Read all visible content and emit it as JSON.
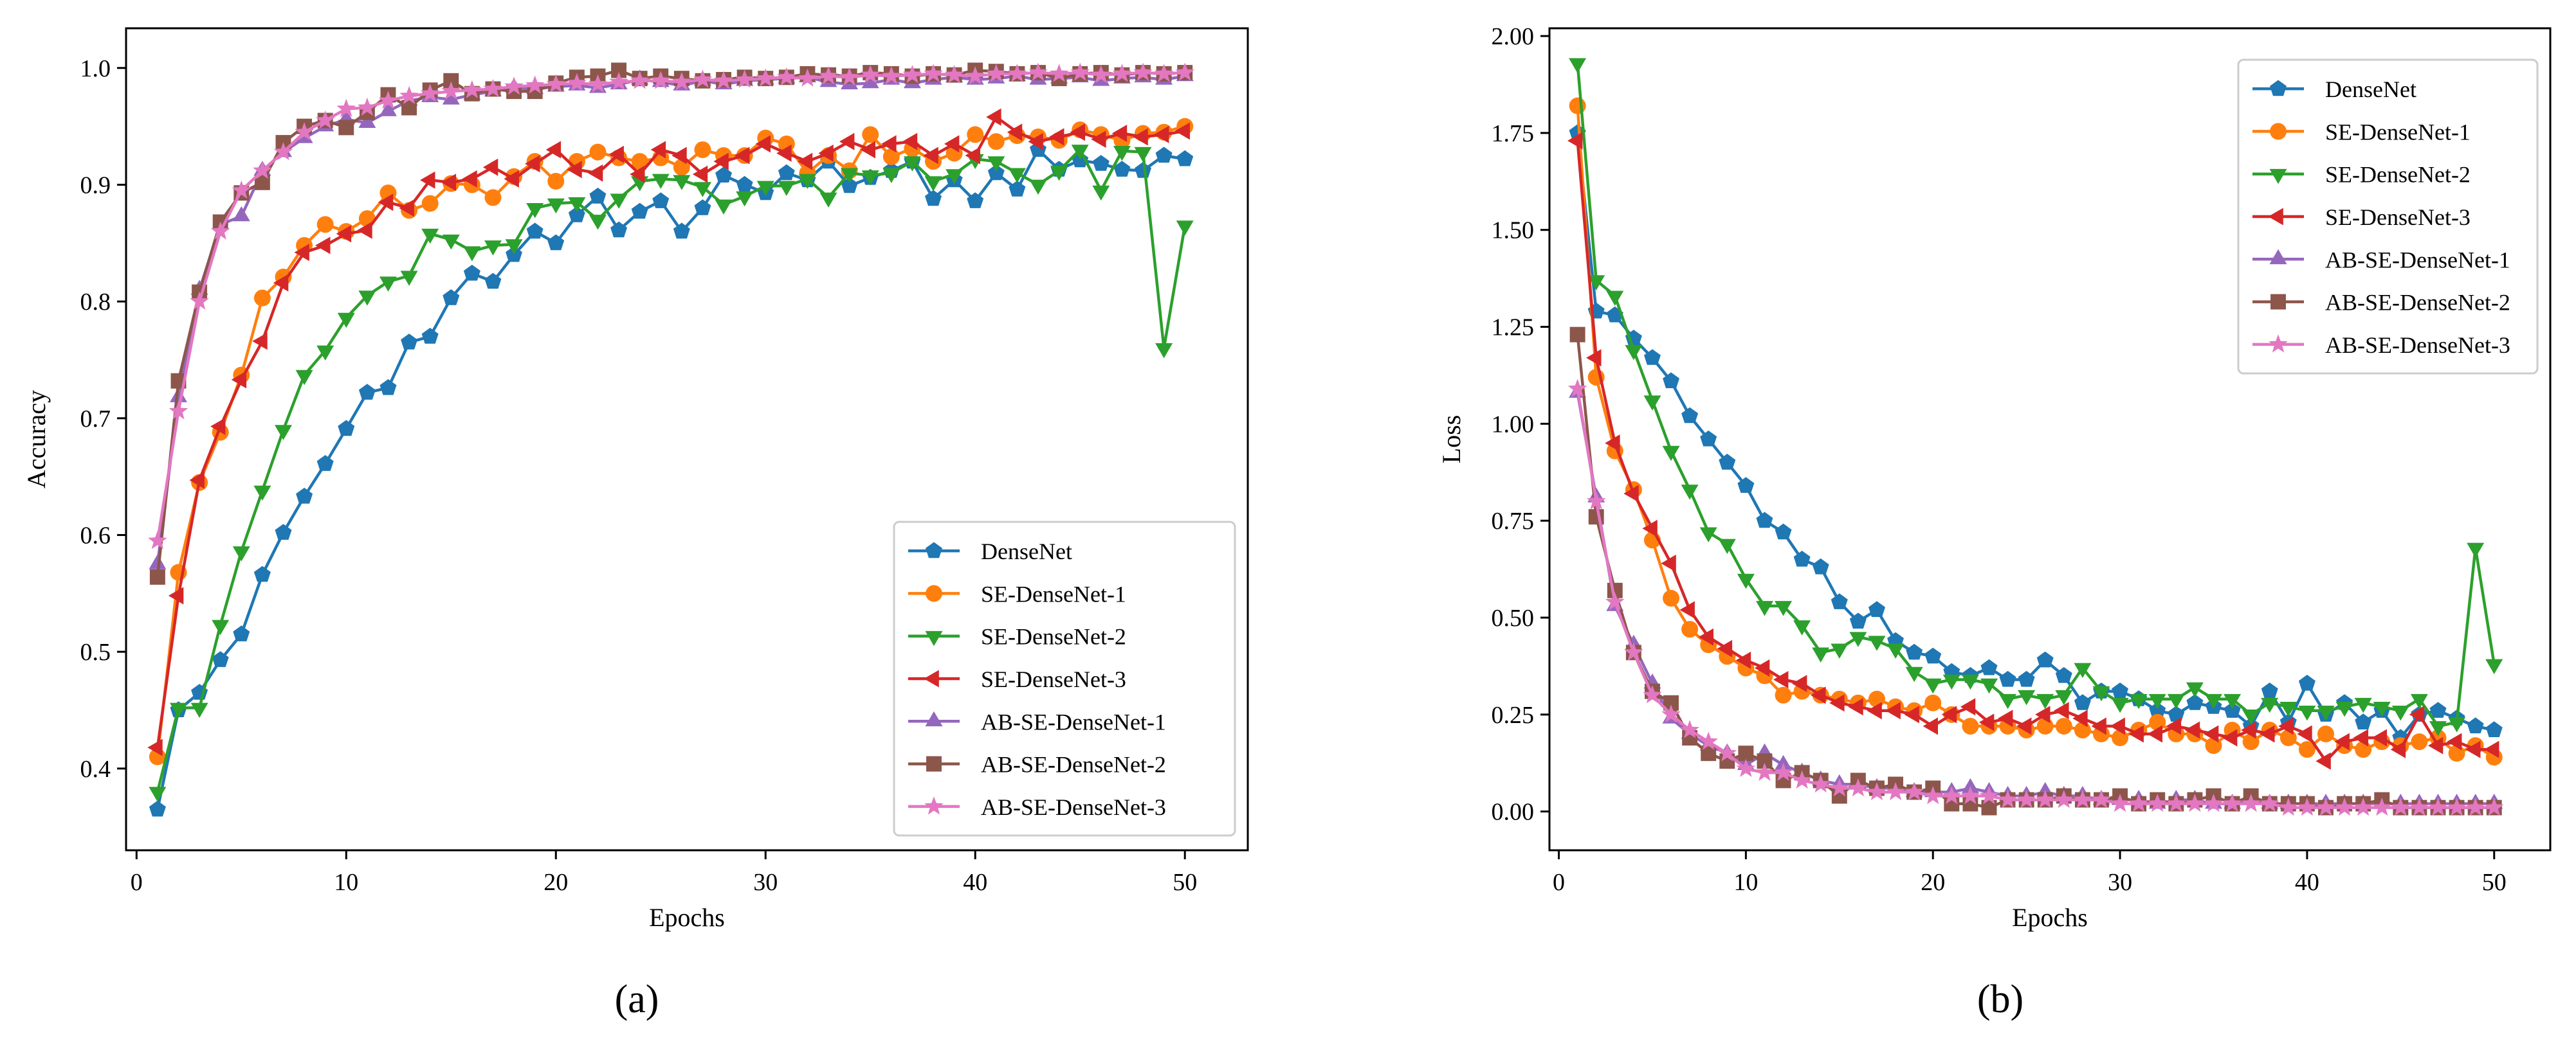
{
  "chart_data": [
    {
      "type": "line",
      "panel_label": "(a)",
      "xlabel": "Epochs",
      "ylabel": "Accuracy",
      "xlim": [
        -0.5,
        53
      ],
      "ylim": [
        0.33,
        1.034
      ],
      "xticks": [
        0,
        10,
        20,
        30,
        40,
        50
      ],
      "yticks": [
        0.4,
        0.5,
        0.6,
        0.7,
        0.8,
        0.9,
        1.0
      ],
      "tick_labels": [
        "0.4",
        "0.5",
        "0.6",
        "0.7",
        "0.8",
        "0.9",
        "1.0"
      ],
      "legend_position": "lower-right",
      "x": [
        1,
        2,
        3,
        4,
        5,
        6,
        7,
        8,
        9,
        10,
        11,
        12,
        13,
        14,
        15,
        16,
        17,
        18,
        19,
        20,
        21,
        22,
        23,
        24,
        25,
        26,
        27,
        28,
        29,
        30,
        31,
        32,
        33,
        34,
        35,
        36,
        37,
        38,
        39,
        40,
        41,
        42,
        43,
        44,
        45,
        46,
        47,
        48,
        49,
        50
      ],
      "series": [
        {
          "name": "DenseNet",
          "color": "#1f77b4",
          "marker": "pentagon",
          "values": [
            0.365,
            0.45,
            0.465,
            0.493,
            0.515,
            0.566,
            0.602,
            0.633,
            0.661,
            0.691,
            0.722,
            0.726,
            0.765,
            0.77,
            0.803,
            0.824,
            0.817,
            0.84,
            0.86,
            0.85,
            0.874,
            0.89,
            0.861,
            0.877,
            0.886,
            0.86,
            0.88,
            0.908,
            0.9,
            0.893,
            0.91,
            0.904,
            0.92,
            0.899,
            0.906,
            0.912,
            0.92,
            0.888,
            0.904,
            0.886,
            0.91,
            0.896,
            0.93,
            0.913,
            0.921,
            0.918,
            0.913,
            0.912,
            0.925,
            0.922
          ]
        },
        {
          "name": "SE-DenseNet-1",
          "color": "#ff7f0e",
          "marker": "circle",
          "values": [
            0.41,
            0.568,
            0.645,
            0.688,
            0.737,
            0.803,
            0.821,
            0.848,
            0.866,
            0.86,
            0.871,
            0.893,
            0.878,
            0.884,
            0.901,
            0.9,
            0.889,
            0.907,
            0.92,
            0.903,
            0.92,
            0.928,
            0.923,
            0.92,
            0.923,
            0.915,
            0.93,
            0.925,
            0.925,
            0.94,
            0.935,
            0.91,
            0.925,
            0.912,
            0.943,
            0.924,
            0.931,
            0.92,
            0.927,
            0.943,
            0.937,
            0.942,
            0.941,
            0.938,
            0.947,
            0.943,
            0.938,
            0.944,
            0.945,
            0.95
          ]
        },
        {
          "name": "SE-DenseNet-2",
          "color": "#2ca02c",
          "marker": "triangle-down",
          "values": [
            0.38,
            0.452,
            0.452,
            0.523,
            0.586,
            0.638,
            0.69,
            0.737,
            0.758,
            0.786,
            0.805,
            0.817,
            0.822,
            0.858,
            0.853,
            0.843,
            0.848,
            0.849,
            0.88,
            0.884,
            0.885,
            0.87,
            0.888,
            0.903,
            0.905,
            0.904,
            0.898,
            0.883,
            0.89,
            0.899,
            0.899,
            0.905,
            0.889,
            0.91,
            0.908,
            0.91,
            0.92,
            0.903,
            0.909,
            0.922,
            0.92,
            0.91,
            0.9,
            0.912,
            0.93,
            0.895,
            0.929,
            0.928,
            0.76,
            0.865
          ]
        },
        {
          "name": "SE-DenseNet-3",
          "color": "#d62728",
          "marker": "triangle-left",
          "values": [
            0.418,
            0.548,
            0.647,
            0.693,
            0.733,
            0.766,
            0.816,
            0.842,
            0.848,
            0.858,
            0.861,
            0.885,
            0.88,
            0.904,
            0.902,
            0.905,
            0.915,
            0.905,
            0.918,
            0.93,
            0.913,
            0.91,
            0.926,
            0.909,
            0.93,
            0.925,
            0.909,
            0.92,
            0.925,
            0.935,
            0.927,
            0.92,
            0.927,
            0.937,
            0.93,
            0.935,
            0.937,
            0.925,
            0.935,
            0.925,
            0.958,
            0.945,
            0.937,
            0.941,
            0.945,
            0.939,
            0.944,
            0.941,
            0.943,
            0.946
          ]
        },
        {
          "name": "AB-SE-DenseNet-1",
          "color": "#9467bd",
          "marker": "triangle-up",
          "values": [
            0.575,
            0.718,
            0.81,
            0.866,
            0.873,
            0.912,
            0.928,
            0.94,
            0.95,
            0.956,
            0.953,
            0.963,
            0.972,
            0.975,
            0.973,
            0.977,
            0.98,
            0.983,
            0.982,
            0.984,
            0.985,
            0.983,
            0.986,
            0.99,
            0.988,
            0.985,
            0.989,
            0.986,
            0.989,
            0.99,
            0.991,
            0.992,
            0.988,
            0.986,
            0.987,
            0.99,
            0.987,
            0.99,
            0.992,
            0.99,
            0.991,
            0.993,
            0.99,
            0.991,
            0.992,
            0.989,
            0.991,
            0.992,
            0.99,
            0.993
          ]
        },
        {
          "name": "AB-SE-DenseNet-2",
          "color": "#8c564b",
          "marker": "square",
          "values": [
            0.564,
            0.732,
            0.808,
            0.868,
            0.893,
            0.902,
            0.936,
            0.95,
            0.955,
            0.949,
            0.962,
            0.977,
            0.966,
            0.981,
            0.989,
            0.978,
            0.982,
            0.98,
            0.98,
            0.987,
            0.992,
            0.993,
            0.998,
            0.991,
            0.993,
            0.991,
            0.989,
            0.99,
            0.992,
            0.991,
            0.992,
            0.995,
            0.994,
            0.993,
            0.996,
            0.995,
            0.993,
            0.995,
            0.994,
            0.998,
            0.997,
            0.995,
            0.996,
            0.991,
            0.995,
            0.996,
            0.994,
            0.996,
            0.995,
            0.996
          ]
        },
        {
          "name": "AB-SE-DenseNet-3",
          "color": "#e377c2",
          "marker": "star",
          "values": [
            0.595,
            0.706,
            0.8,
            0.86,
            0.895,
            0.912,
            0.928,
            0.945,
            0.955,
            0.965,
            0.966,
            0.972,
            0.976,
            0.978,
            0.98,
            0.981,
            0.982,
            0.984,
            0.985,
            0.986,
            0.987,
            0.986,
            0.988,
            0.989,
            0.989,
            0.988,
            0.99,
            0.989,
            0.99,
            0.991,
            0.992,
            0.991,
            0.993,
            0.992,
            0.994,
            0.993,
            0.994,
            0.995,
            0.994,
            0.993,
            0.995,
            0.995,
            0.996,
            0.995,
            0.996,
            0.994,
            0.995,
            0.996,
            0.995,
            0.996
          ]
        }
      ]
    },
    {
      "type": "line",
      "panel_label": "(b)",
      "xlabel": "Epochs",
      "ylabel": "Loss",
      "xlim": [
        -0.5,
        53
      ],
      "ylim": [
        -0.1,
        2.02
      ],
      "xticks": [
        0,
        10,
        20,
        30,
        40,
        50
      ],
      "yticks": [
        0.0,
        0.25,
        0.5,
        0.75,
        1.0,
        1.25,
        1.5,
        1.75,
        2.0
      ],
      "tick_labels": [
        "0.00",
        "0.25",
        "0.50",
        "0.75",
        "1.00",
        "1.25",
        "1.50",
        "1.75",
        "2.00"
      ],
      "legend_position": "upper-right",
      "x": [
        1,
        2,
        3,
        4,
        5,
        6,
        7,
        8,
        9,
        10,
        11,
        12,
        13,
        14,
        15,
        16,
        17,
        18,
        19,
        20,
        21,
        22,
        23,
        24,
        25,
        26,
        27,
        28,
        29,
        30,
        31,
        32,
        33,
        34,
        35,
        36,
        37,
        38,
        39,
        40,
        41,
        42,
        43,
        44,
        45,
        46,
        47,
        48,
        49,
        50
      ],
      "series": [
        {
          "name": "DenseNet",
          "color": "#1f77b4",
          "marker": "pentagon",
          "values": [
            1.75,
            1.29,
            1.28,
            1.22,
            1.17,
            1.11,
            1.02,
            0.96,
            0.9,
            0.84,
            0.75,
            0.72,
            0.65,
            0.63,
            0.54,
            0.49,
            0.52,
            0.44,
            0.41,
            0.4,
            0.36,
            0.35,
            0.37,
            0.34,
            0.34,
            0.39,
            0.35,
            0.28,
            0.31,
            0.31,
            0.29,
            0.26,
            0.25,
            0.28,
            0.27,
            0.26,
            0.22,
            0.31,
            0.23,
            0.33,
            0.25,
            0.28,
            0.23,
            0.26,
            0.19,
            0.25,
            0.26,
            0.24,
            0.22,
            0.21
          ]
        },
        {
          "name": "SE-DenseNet-1",
          "color": "#ff7f0e",
          "marker": "circle",
          "values": [
            1.82,
            1.12,
            0.93,
            0.83,
            0.7,
            0.55,
            0.47,
            0.43,
            0.4,
            0.37,
            0.35,
            0.3,
            0.31,
            0.3,
            0.29,
            0.28,
            0.29,
            0.27,
            0.26,
            0.28,
            0.25,
            0.22,
            0.22,
            0.22,
            0.21,
            0.22,
            0.22,
            0.21,
            0.2,
            0.19,
            0.21,
            0.23,
            0.2,
            0.2,
            0.17,
            0.21,
            0.18,
            0.21,
            0.19,
            0.16,
            0.2,
            0.17,
            0.16,
            0.18,
            0.17,
            0.18,
            0.19,
            0.15,
            0.17,
            0.14
          ]
        },
        {
          "name": "SE-DenseNet-2",
          "color": "#2ca02c",
          "marker": "triangle-down",
          "values": [
            1.93,
            1.37,
            1.33,
            1.19,
            1.06,
            0.93,
            0.83,
            0.72,
            0.69,
            0.6,
            0.53,
            0.53,
            0.48,
            0.41,
            0.42,
            0.45,
            0.44,
            0.42,
            0.36,
            0.33,
            0.34,
            0.34,
            0.33,
            0.29,
            0.3,
            0.29,
            0.3,
            0.37,
            0.31,
            0.28,
            0.29,
            0.29,
            0.29,
            0.32,
            0.29,
            0.29,
            0.25,
            0.28,
            0.27,
            0.26,
            0.26,
            0.27,
            0.28,
            0.27,
            0.26,
            0.29,
            0.22,
            0.23,
            0.68,
            0.38
          ]
        },
        {
          "name": "SE-DenseNet-3",
          "color": "#d62728",
          "marker": "triangle-left",
          "values": [
            1.73,
            1.17,
            0.95,
            0.82,
            0.73,
            0.64,
            0.52,
            0.45,
            0.42,
            0.39,
            0.37,
            0.34,
            0.33,
            0.3,
            0.28,
            0.27,
            0.26,
            0.26,
            0.25,
            0.22,
            0.25,
            0.27,
            0.23,
            0.24,
            0.22,
            0.25,
            0.26,
            0.24,
            0.22,
            0.22,
            0.2,
            0.2,
            0.22,
            0.21,
            0.2,
            0.19,
            0.21,
            0.2,
            0.22,
            0.2,
            0.13,
            0.18,
            0.19,
            0.19,
            0.16,
            0.25,
            0.17,
            0.18,
            0.16,
            0.16
          ]
        },
        {
          "name": "AB-SE-DenseNet-1",
          "color": "#9467bd",
          "marker": "triangle-up",
          "values": [
            1.08,
            0.81,
            0.53,
            0.43,
            0.33,
            0.24,
            0.2,
            0.17,
            0.15,
            0.12,
            0.15,
            0.12,
            0.1,
            0.08,
            0.07,
            0.07,
            0.06,
            0.06,
            0.05,
            0.05,
            0.05,
            0.06,
            0.05,
            0.04,
            0.04,
            0.05,
            0.04,
            0.04,
            0.03,
            0.03,
            0.03,
            0.02,
            0.03,
            0.03,
            0.02,
            0.02,
            0.03,
            0.02,
            0.02,
            0.02,
            0.02,
            0.02,
            0.02,
            0.02,
            0.02,
            0.02,
            0.02,
            0.02,
            0.02,
            0.02
          ]
        },
        {
          "name": "AB-SE-DenseNet-2",
          "color": "#8c564b",
          "marker": "square",
          "values": [
            1.23,
            0.76,
            0.57,
            0.41,
            0.31,
            0.28,
            0.19,
            0.15,
            0.13,
            0.15,
            0.13,
            0.08,
            0.1,
            0.08,
            0.04,
            0.08,
            0.06,
            0.07,
            0.05,
            0.06,
            0.02,
            0.02,
            0.01,
            0.03,
            0.03,
            0.03,
            0.04,
            0.03,
            0.03,
            0.04,
            0.02,
            0.03,
            0.02,
            0.03,
            0.04,
            0.02,
            0.04,
            0.02,
            0.02,
            0.02,
            0.01,
            0.02,
            0.02,
            0.03,
            0.01,
            0.01,
            0.01,
            0.01,
            0.01,
            0.01
          ]
        },
        {
          "name": "AB-SE-DenseNet-3",
          "color": "#e377c2",
          "marker": "star",
          "values": [
            1.09,
            0.8,
            0.54,
            0.41,
            0.3,
            0.25,
            0.21,
            0.18,
            0.15,
            0.11,
            0.1,
            0.1,
            0.08,
            0.07,
            0.06,
            0.06,
            0.05,
            0.05,
            0.05,
            0.04,
            0.04,
            0.04,
            0.04,
            0.03,
            0.03,
            0.03,
            0.03,
            0.03,
            0.03,
            0.02,
            0.02,
            0.02,
            0.02,
            0.02,
            0.02,
            0.02,
            0.02,
            0.02,
            0.01,
            0.01,
            0.01,
            0.01,
            0.01,
            0.01,
            0.01,
            0.01,
            0.01,
            0.01,
            0.01,
            0.01
          ]
        }
      ]
    }
  ]
}
